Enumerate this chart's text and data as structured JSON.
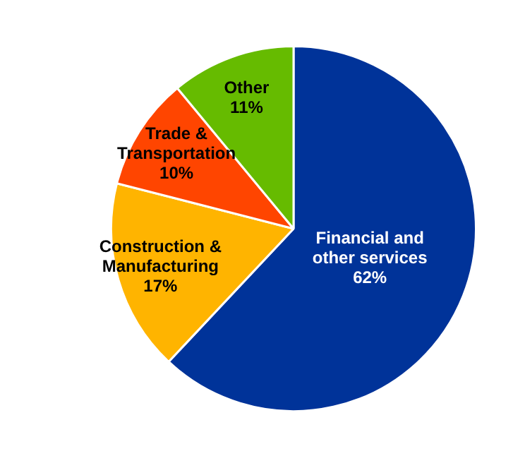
{
  "chart_data": {
    "type": "pie",
    "categories": [
      "Financial and\nother services",
      "Construction &\nManufacturing",
      "Trade &\nTransportation",
      "Other"
    ],
    "values": [
      62,
      17,
      10,
      11
    ],
    "colors": [
      "#003399",
      "#ffb400",
      "#ff4500",
      "#66bb00"
    ],
    "value_labels": [
      "62%",
      "17%",
      "10%",
      "11%"
    ]
  }
}
